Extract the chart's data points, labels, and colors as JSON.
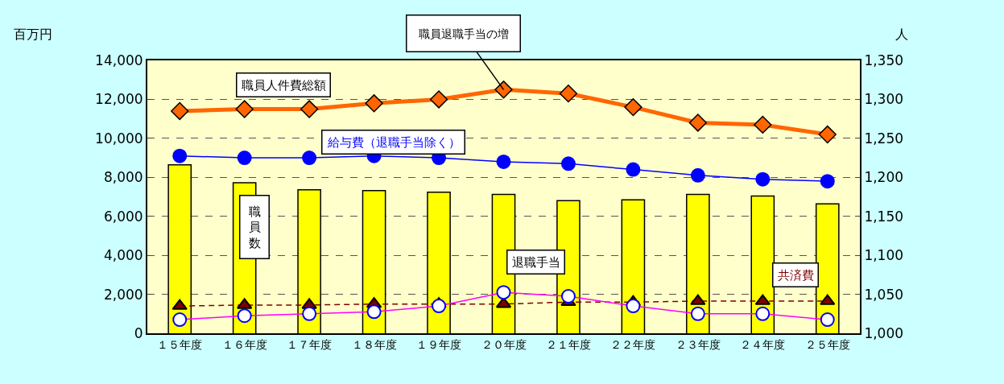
{
  "chart_data": {
    "type": "line",
    "xlabel": null,
    "ylabel": "百万円",
    "y2label": "人",
    "categories": [
      "１５年度",
      "１６年度",
      "１７年度",
      "１８年度",
      "１９年度",
      "２０年度",
      "２１年度",
      "２２年度",
      "２３年度",
      "２４年度",
      "２５年度"
    ],
    "series": [
      {
        "name": "職員数",
        "type": "bar",
        "axis": "y2",
        "color": "#ffff00",
        "values": [
          1216,
          1193,
          1184,
          1183,
          1181,
          1178,
          1170,
          1171,
          1178,
          1176,
          1166
        ]
      },
      {
        "name": "職員人件費総額",
        "color": "#ff6600",
        "marker": "diamond",
        "line_style": "solid",
        "values": [
          11400,
          11500,
          11500,
          11800,
          12000,
          12500,
          12300,
          11600,
          10800,
          10700,
          10200
        ]
      },
      {
        "name": "給与費（退職手当除く）",
        "color": "#0000ff",
        "marker": "circle",
        "line_style": "solid",
        "values": [
          9100,
          9000,
          9000,
          9100,
          9000,
          8800,
          8700,
          8400,
          8100,
          7900,
          7800
        ]
      },
      {
        "name": "退職手当",
        "color": "#ff00ff",
        "marker": "circle",
        "line_style": "solid",
        "values": [
          700,
          900,
          1000,
          1100,
          1400,
          2100,
          1900,
          1400,
          1000,
          1000,
          700
        ]
      },
      {
        "name": "共済費",
        "color": "#800000",
        "marker": "triangle",
        "line_style": "dashed",
        "values": [
          1400,
          1450,
          1450,
          1500,
          1500,
          1500,
          1600,
          1600,
          1650,
          1650,
          1650
        ]
      }
    ],
    "ylim": [
      0,
      14000
    ],
    "yticks": [
      0,
      {
        "value": 2000,
        "label": "2,000"
      },
      {
        "value": 4000,
        "label": "4,000"
      },
      {
        "value": 6000,
        "label": "6,000"
      },
      {
        "value": 8000,
        "label": "8,000"
      },
      {
        "value": 10000,
        "label": "10,000"
      },
      {
        "value": 12000,
        "label": "12,000"
      },
      {
        "value": 14000,
        "label": "14,000"
      }
    ],
    "y2lim": [
      1000,
      1350
    ],
    "y2ticks": [
      {
        "value": 1000,
        "label": "1,000"
      },
      {
        "value": 1050,
        "label": "1,050"
      },
      {
        "value": 1100,
        "label": "1,100"
      },
      {
        "value": 1150,
        "label": "1,150"
      },
      {
        "value": 1200,
        "label": "1,200"
      },
      {
        "value": 1250,
        "label": "1,250"
      },
      {
        "value": 1300,
        "label": "1,300"
      },
      {
        "value": 1350,
        "label": "1,350"
      }
    ],
    "grid": "y",
    "legend": false,
    "annotations": [
      {
        "text": "職員退職手当の増",
        "x": "２０年度",
        "y": 12500
      }
    ]
  }
}
